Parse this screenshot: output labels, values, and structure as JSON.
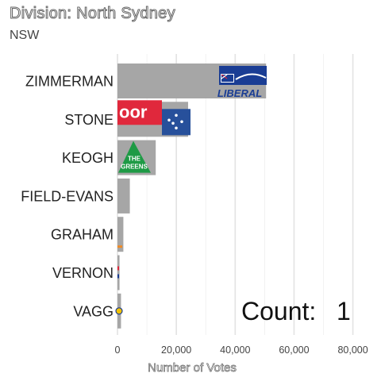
{
  "header": {
    "title": "Division: North Sydney",
    "subtitle": "NSW"
  },
  "counter": {
    "label": "Count:",
    "value": "1"
  },
  "chart_data": {
    "type": "bar",
    "orientation": "horizontal",
    "title": "Division: North Sydney",
    "subtitle": "NSW",
    "xlabel": "Number of Votes",
    "ylabel": "",
    "categories": [
      "ZIMMERMAN",
      "STONE",
      "KEOGH",
      "FIELD-EVANS",
      "GRAHAM",
      "VERNON",
      "VAGG"
    ],
    "values": [
      50500,
      24000,
      13000,
      4200,
      2000,
      700,
      1200
    ],
    "xlim": [
      0,
      82000
    ],
    "xticks": [
      0,
      20000,
      40000,
      60000,
      80000
    ],
    "xtick_labels": [
      "0",
      "20,000",
      "40,000",
      "60,000",
      "80,000"
    ],
    "grid": true,
    "bar_color": "#a6a6a6",
    "party_logos": [
      "liberal-logo",
      "labor-logo",
      "greens-logo",
      "",
      "",
      "",
      ""
    ],
    "logo_text": {
      "liberal": "LIBERAL",
      "labor": "oor",
      "greens_top": "THE",
      "greens_bottom": "GREENS"
    },
    "colors": {
      "liberal_blue": "#1a3d94",
      "labor_red": "#e0283c",
      "greens_green": "#1e9a45",
      "grid": "#e3e3e3"
    }
  }
}
